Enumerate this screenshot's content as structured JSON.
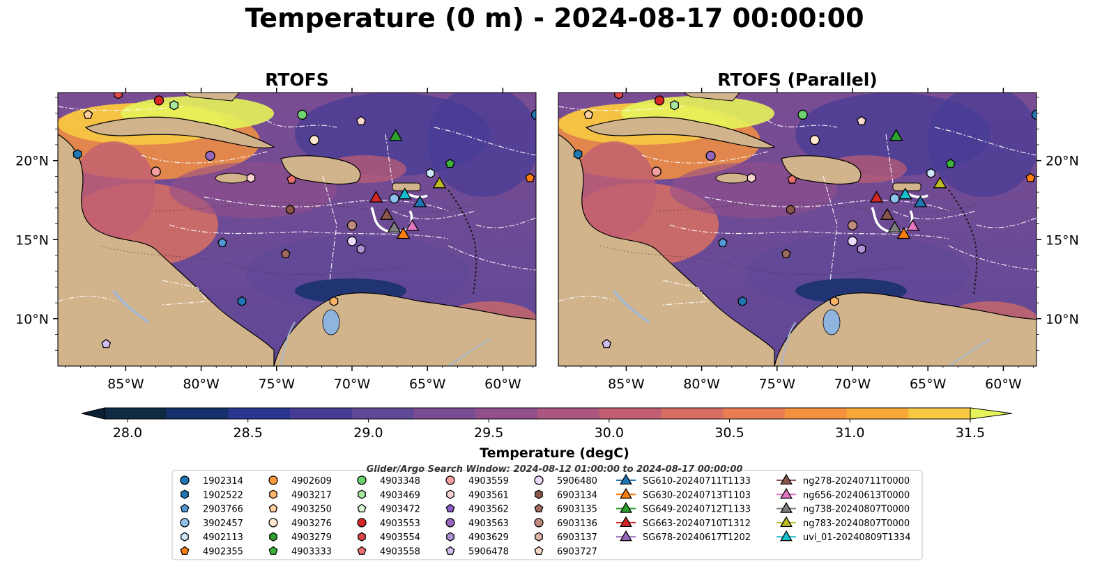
{
  "title": "Temperature (0 m) - 2024-08-17 00:00:00",
  "panels": [
    {
      "title": "RTOFS"
    },
    {
      "title": "RTOFS (Parallel)"
    }
  ],
  "axes": {
    "lon_ticks": [
      "85°W",
      "80°W",
      "75°W",
      "70°W",
      "65°W",
      "60°W"
    ],
    "lat_ticks": [
      "20°N",
      "15°N",
      "10°N"
    ]
  },
  "colorbar": {
    "label": "Temperature (degC)",
    "ticks": [
      "28.0",
      "28.5",
      "29.0",
      "29.5",
      "30.0",
      "30.5",
      "31.0",
      "31.5"
    ],
    "colors": [
      "#0f2a43",
      "#15306b",
      "#2a368f",
      "#473c95",
      "#5f4897",
      "#7a4d93",
      "#934f8b",
      "#ab5681",
      "#c25f72",
      "#d86e63",
      "#ea7c52",
      "#f4913f",
      "#f8a838",
      "#f8c943",
      "#e6f35a"
    ],
    "extend": "both"
  },
  "search_window": "Glider/Argo Search Window: 2024-08-12 01:00:00 to 2024-08-17 00:00:00",
  "legend": [
    [
      {
        "label": "1902314",
        "marker": "circle",
        "color": "#1f77b4"
      },
      {
        "label": "1902522",
        "marker": "hexagon",
        "color": "#1f77b4"
      },
      {
        "label": "2903766",
        "marker": "pentagon",
        "color": "#5599d4"
      },
      {
        "label": "3902457",
        "marker": "circle",
        "color": "#8ec2ec"
      },
      {
        "label": "4902113",
        "marker": "hexagon",
        "color": "#cce6fb"
      },
      {
        "label": "4902355",
        "marker": "pentagon",
        "color": "#ff7f0e"
      }
    ],
    [
      {
        "label": "4902609",
        "marker": "circle",
        "color": "#ff9a3c"
      },
      {
        "label": "4903217",
        "marker": "hexagon",
        "color": "#ffb46a"
      },
      {
        "label": "4903250",
        "marker": "pentagon",
        "color": "#ffd09e"
      },
      {
        "label": "4903276",
        "marker": "circle",
        "color": "#ffe8cc"
      },
      {
        "label": "4903279",
        "marker": "hexagon",
        "color": "#2ca02c"
      },
      {
        "label": "4903333",
        "marker": "pentagon",
        "color": "#3cb43c"
      }
    ],
    [
      {
        "label": "4903348",
        "marker": "circle",
        "color": "#6fd36f"
      },
      {
        "label": "4903469",
        "marker": "hexagon",
        "color": "#a6e8a0"
      },
      {
        "label": "4903472",
        "marker": "pentagon",
        "color": "#dcf8d6"
      },
      {
        "label": "4903553",
        "marker": "circle",
        "color": "#d62728"
      },
      {
        "label": "4903554",
        "marker": "hexagon",
        "color": "#e04848"
      },
      {
        "label": "4903558",
        "marker": "pentagon",
        "color": "#ea6e6e"
      }
    ],
    [
      {
        "label": "4903559",
        "marker": "circle",
        "color": "#f4a0a0"
      },
      {
        "label": "4903561",
        "marker": "hexagon",
        "color": "#fbd2d2"
      },
      {
        "label": "4903562",
        "marker": "pentagon",
        "color": "#8e5cc8"
      },
      {
        "label": "4903563",
        "marker": "circle",
        "color": "#9467bd"
      },
      {
        "label": "4903629",
        "marker": "hexagon",
        "color": "#b393d8"
      },
      {
        "label": "5906478",
        "marker": "pentagon",
        "color": "#d2bdee"
      }
    ],
    [
      {
        "label": "5906480",
        "marker": "circle",
        "color": "#ecdcfa"
      },
      {
        "label": "6903134",
        "marker": "hexagon",
        "color": "#8c564b"
      },
      {
        "label": "6903135",
        "marker": "pentagon",
        "color": "#a06a5e"
      },
      {
        "label": "6903136",
        "marker": "circle",
        "color": "#c08a7e"
      },
      {
        "label": "6903137",
        "marker": "hexagon",
        "color": "#e0b4a8"
      },
      {
        "label": "6903727",
        "marker": "pentagon",
        "color": "#fad8cc"
      }
    ],
    [
      {
        "label": "SG610-20240711T1133",
        "marker": "triangle",
        "color": "#1f77b4"
      },
      {
        "label": "SG630-20240713T1103",
        "marker": "triangle",
        "color": "#ff7f0e"
      },
      {
        "label": "SG649-20240712T1133",
        "marker": "triangle",
        "color": "#2ca02c"
      },
      {
        "label": "SG663-20240710T1312",
        "marker": "triangle",
        "color": "#d62728"
      },
      {
        "label": "SG678-20240617T1202",
        "marker": "triangle",
        "color": "#9467bd"
      }
    ],
    [
      {
        "label": "ng278-20240711T0000",
        "marker": "triangle",
        "color": "#8c564b"
      },
      {
        "label": "ng656-20240613T0000",
        "marker": "triangle",
        "color": "#e377c2"
      },
      {
        "label": "ng738-20240807T0000",
        "marker": "triangle",
        "color": "#7f7f7f"
      },
      {
        "label": "ng783-20240807T0000",
        "marker": "triangle",
        "color": "#bcbd22"
      },
      {
        "label": "uvi_01-20240809T1334",
        "marker": "triangle",
        "color": "#17becf"
      }
    ]
  ],
  "map_markers": [
    {
      "id": "4903554",
      "marker": "hexagon",
      "color": "#e04848",
      "lon": -85.5,
      "lat": 24.2
    },
    {
      "id": "4903553",
      "marker": "circle",
      "color": "#d62728",
      "lon": -82.8,
      "lat": 23.8
    },
    {
      "id": "4903469",
      "marker": "hexagon",
      "color": "#a6e8a0",
      "lon": -81.8,
      "lat": 23.5
    },
    {
      "id": "4903250",
      "marker": "pentagon",
      "color": "#ffd09e",
      "lon": -87.5,
      "lat": 22.9
    },
    {
      "id": "4903348",
      "marker": "circle",
      "color": "#6fd36f",
      "lon": -73.3,
      "lat": 22.9
    },
    {
      "id": "6903727",
      "marker": "pentagon",
      "color": "#fad8cc",
      "lon": -69.4,
      "lat": 22.5
    },
    {
      "id": "4903276",
      "marker": "circle",
      "color": "#ffe8cc",
      "lon": -72.5,
      "lat": 21.3
    },
    {
      "id": "1902522",
      "marker": "hexagon",
      "color": "#1f77b4",
      "lon": -88.2,
      "lat": 20.4
    },
    {
      "id": "4903563",
      "marker": "circle",
      "color": "#9467bd",
      "lon": -79.4,
      "lat": 20.3
    },
    {
      "id": "4903559",
      "marker": "circle",
      "color": "#f4a0a0",
      "lon": -83.0,
      "lat": 19.3
    },
    {
      "id": "4903561",
      "marker": "hexagon",
      "color": "#fbd2d2",
      "lon": -76.7,
      "lat": 18.9
    },
    {
      "id": "4903558",
      "marker": "pentagon",
      "color": "#ea6e6e",
      "lon": -74.0,
      "lat": 18.8
    },
    {
      "id": "4902113",
      "marker": "hexagon",
      "color": "#cce6fb",
      "lon": -64.8,
      "lat": 19.2
    },
    {
      "id": "4903333",
      "marker": "pentagon",
      "color": "#3cb43c",
      "lon": -63.5,
      "lat": 19.8
    },
    {
      "id": "4902355",
      "marker": "pentagon",
      "color": "#ff7f0e",
      "lon": -58.2,
      "lat": 18.9
    },
    {
      "id": "1902314",
      "marker": "circle",
      "color": "#1f77b4",
      "lon": -57.8,
      "lat": 22.9
    },
    {
      "id": "6903134",
      "marker": "hexagon",
      "color": "#8c564b",
      "lon": -74.1,
      "lat": 16.9
    },
    {
      "id": "3902457",
      "marker": "circle",
      "color": "#8ec2ec",
      "lon": -67.2,
      "lat": 17.6
    },
    {
      "id": "6903136",
      "marker": "circle",
      "color": "#c08a7e",
      "lon": -70.0,
      "lat": 15.9
    },
    {
      "id": "5906480",
      "marker": "circle",
      "color": "#ecdcfa",
      "lon": -70.0,
      "lat": 14.9
    },
    {
      "id": "4903629",
      "marker": "hexagon",
      "color": "#b393d8",
      "lon": -69.4,
      "lat": 14.4
    },
    {
      "id": "2903766",
      "marker": "pentagon",
      "color": "#5599d4",
      "lon": -78.6,
      "lat": 14.8
    },
    {
      "id": "6903135",
      "marker": "pentagon",
      "color": "#a06a5e",
      "lon": -74.4,
      "lat": 14.1
    },
    {
      "id": "1902522",
      "marker": "hexagon",
      "color": "#1f77b4",
      "lon": -77.3,
      "lat": 11.1
    },
    {
      "id": "4903217",
      "marker": "hexagon",
      "color": "#ffb46a",
      "lon": -71.2,
      "lat": 11.1
    },
    {
      "id": "5906478",
      "marker": "pentagon",
      "color": "#d2bdee",
      "lon": -86.3,
      "lat": 8.4
    },
    {
      "id": "SG649-20240712T1133",
      "marker": "triangle",
      "color": "#2ca02c",
      "lon": -67.1,
      "lat": 21.5
    },
    {
      "id": "ng783-20240807T0000",
      "marker": "triangle",
      "color": "#bcbd22",
      "lon": -64.2,
      "lat": 18.5
    },
    {
      "id": "SG663-20240710T1312",
      "marker": "triangle",
      "color": "#d62728",
      "lon": -68.4,
      "lat": 17.6
    },
    {
      "id": "uvi_01-20240809T1334",
      "marker": "triangle",
      "color": "#17becf",
      "lon": -66.5,
      "lat": 17.8
    },
    {
      "id": "SG610-20240711T1133",
      "marker": "triangle",
      "color": "#1f77b4",
      "lon": -65.5,
      "lat": 17.3
    },
    {
      "id": "ng278-20240711T0000",
      "marker": "triangle",
      "color": "#8c564b",
      "lon": -67.7,
      "lat": 16.5
    },
    {
      "id": "ng738-20240807T0000",
      "marker": "triangle",
      "color": "#7f7f7f",
      "lon": -67.2,
      "lat": 15.7
    },
    {
      "id": "ng656-20240613T0000",
      "marker": "triangle",
      "color": "#e377c2",
      "lon": -66.0,
      "lat": 15.8
    },
    {
      "id": "SG630-20240713T1103",
      "marker": "triangle",
      "color": "#ff7f0e",
      "lon": -66.6,
      "lat": 15.3
    }
  ]
}
